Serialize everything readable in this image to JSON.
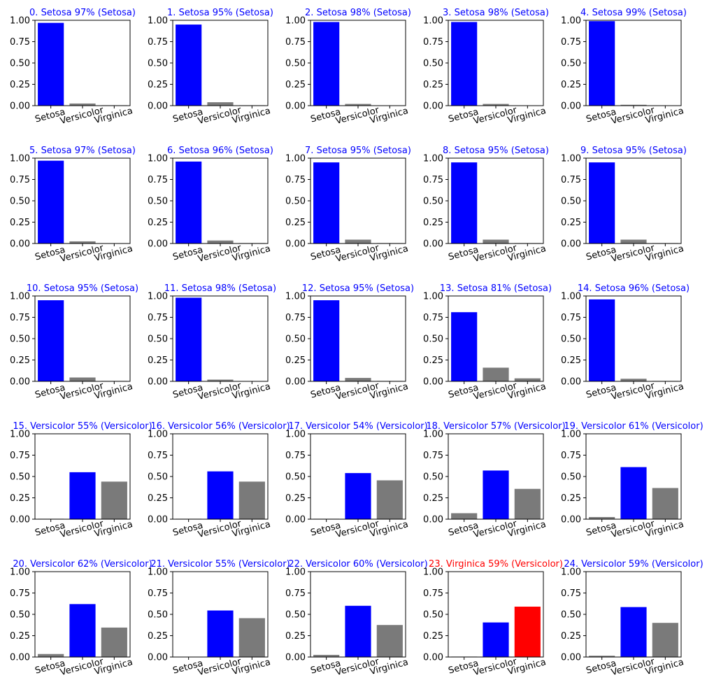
{
  "colors": {
    "predicted": "#0000ff",
    "other": "#7a7a7a",
    "wrong": "#ff0000",
    "title_correct": "#0000ff",
    "title_wrong": "#ff0000",
    "axis": "#000000",
    "background": "#ffffff"
  },
  "chart_data": [
    {
      "type": "bar",
      "title": "0. Setosa 97% (Setosa)",
      "categories": [
        "Setosa",
        "Versicolor",
        "Virginica"
      ],
      "values": [
        0.97,
        0.025,
        0.005
      ],
      "ylim": [
        0,
        1
      ],
      "yticks": [
        "0.00",
        "0.25",
        "0.50",
        "0.75",
        "1.00"
      ],
      "highlight": "blue"
    },
    {
      "type": "bar",
      "title": "1. Setosa 95% (Setosa)",
      "categories": [
        "Setosa",
        "Versicolor",
        "Virginica"
      ],
      "values": [
        0.95,
        0.04,
        0.005
      ],
      "ylim": [
        0,
        1
      ],
      "yticks": [
        "0.00",
        "0.25",
        "0.50",
        "0.75",
        "1.00"
      ],
      "highlight": "blue"
    },
    {
      "type": "bar",
      "title": "2. Setosa 98% (Setosa)",
      "categories": [
        "Setosa",
        "Versicolor",
        "Virginica"
      ],
      "values": [
        0.98,
        0.02,
        0.002
      ],
      "ylim": [
        0,
        1
      ],
      "yticks": [
        "0.00",
        "0.25",
        "0.50",
        "0.75",
        "1.00"
      ],
      "highlight": "blue"
    },
    {
      "type": "bar",
      "title": "3. Setosa 98% (Setosa)",
      "categories": [
        "Setosa",
        "Versicolor",
        "Virginica"
      ],
      "values": [
        0.98,
        0.02,
        0.002
      ],
      "ylim": [
        0,
        1
      ],
      "yticks": [
        "0.00",
        "0.25",
        "0.50",
        "0.75",
        "1.00"
      ],
      "highlight": "blue"
    },
    {
      "type": "bar",
      "title": "4. Setosa 99% (Setosa)",
      "categories": [
        "Setosa",
        "Versicolor",
        "Virginica"
      ],
      "values": [
        0.99,
        0.01,
        0.001
      ],
      "ylim": [
        0,
        1
      ],
      "yticks": [
        "0.00",
        "0.25",
        "0.50",
        "0.75",
        "1.00"
      ],
      "highlight": "blue"
    },
    {
      "type": "bar",
      "title": "5. Setosa 97% (Setosa)",
      "categories": [
        "Setosa",
        "Versicolor",
        "Virginica"
      ],
      "values": [
        0.97,
        0.025,
        0.002
      ],
      "ylim": [
        0,
        1
      ],
      "yticks": [
        "0.00",
        "0.25",
        "0.50",
        "0.75",
        "1.00"
      ],
      "highlight": "blue"
    },
    {
      "type": "bar",
      "title": "6. Setosa 96% (Setosa)",
      "categories": [
        "Setosa",
        "Versicolor",
        "Virginica"
      ],
      "values": [
        0.96,
        0.035,
        0.005
      ],
      "ylim": [
        0,
        1
      ],
      "yticks": [
        "0.00",
        "0.25",
        "0.50",
        "0.75",
        "1.00"
      ],
      "highlight": "blue"
    },
    {
      "type": "bar",
      "title": "7. Setosa 95% (Setosa)",
      "categories": [
        "Setosa",
        "Versicolor",
        "Virginica"
      ],
      "values": [
        0.95,
        0.045,
        0.005
      ],
      "ylim": [
        0,
        1
      ],
      "yticks": [
        "0.00",
        "0.25",
        "0.50",
        "0.75",
        "1.00"
      ],
      "highlight": "blue"
    },
    {
      "type": "bar",
      "title": "8. Setosa 95% (Setosa)",
      "categories": [
        "Setosa",
        "Versicolor",
        "Virginica"
      ],
      "values": [
        0.95,
        0.045,
        0.005
      ],
      "ylim": [
        0,
        1
      ],
      "yticks": [
        "0.00",
        "0.25",
        "0.50",
        "0.75",
        "1.00"
      ],
      "highlight": "blue"
    },
    {
      "type": "bar",
      "title": "9. Setosa 95% (Setosa)",
      "categories": [
        "Setosa",
        "Versicolor",
        "Virginica"
      ],
      "values": [
        0.95,
        0.045,
        0.005
      ],
      "ylim": [
        0,
        1
      ],
      "yticks": [
        "0.00",
        "0.25",
        "0.50",
        "0.75",
        "1.00"
      ],
      "highlight": "blue"
    },
    {
      "type": "bar",
      "title": "10. Setosa 95% (Setosa)",
      "categories": [
        "Setosa",
        "Versicolor",
        "Virginica"
      ],
      "values": [
        0.95,
        0.045,
        0.005
      ],
      "ylim": [
        0,
        1
      ],
      "yticks": [
        "0.00",
        "0.25",
        "0.50",
        "0.75",
        "1.00"
      ],
      "highlight": "blue"
    },
    {
      "type": "bar",
      "title": "11. Setosa 98% (Setosa)",
      "categories": [
        "Setosa",
        "Versicolor",
        "Virginica"
      ],
      "values": [
        0.98,
        0.02,
        0.002
      ],
      "ylim": [
        0,
        1
      ],
      "yticks": [
        "0.00",
        "0.25",
        "0.50",
        "0.75",
        "1.00"
      ],
      "highlight": "blue"
    },
    {
      "type": "bar",
      "title": "12. Setosa 95% (Setosa)",
      "categories": [
        "Setosa",
        "Versicolor",
        "Virginica"
      ],
      "values": [
        0.95,
        0.04,
        0.005
      ],
      "ylim": [
        0,
        1
      ],
      "yticks": [
        "0.00",
        "0.25",
        "0.50",
        "0.75",
        "1.00"
      ],
      "highlight": "blue"
    },
    {
      "type": "bar",
      "title": "13. Setosa 81% (Setosa)",
      "categories": [
        "Setosa",
        "Versicolor",
        "Virginica"
      ],
      "values": [
        0.81,
        0.16,
        0.035
      ],
      "ylim": [
        0,
        1
      ],
      "yticks": [
        "0.00",
        "0.25",
        "0.50",
        "0.75",
        "1.00"
      ],
      "highlight": "blue"
    },
    {
      "type": "bar",
      "title": "14. Setosa 96% (Setosa)",
      "categories": [
        "Setosa",
        "Versicolor",
        "Virginica"
      ],
      "values": [
        0.96,
        0.03,
        0.005
      ],
      "ylim": [
        0,
        1
      ],
      "yticks": [
        "0.00",
        "0.25",
        "0.50",
        "0.75",
        "1.00"
      ],
      "highlight": "blue"
    },
    {
      "type": "bar",
      "title": "15. Versicolor 55% (Versicolor)",
      "categories": [
        "Setosa",
        "Versicolor",
        "Virginica"
      ],
      "values": [
        0.005,
        0.55,
        0.44
      ],
      "ylim": [
        0,
        1
      ],
      "yticks": [
        "0.00",
        "0.25",
        "0.50",
        "0.75",
        "1.00"
      ],
      "highlight": "blue"
    },
    {
      "type": "bar",
      "title": "16. Versicolor 56% (Versicolor)",
      "categories": [
        "Setosa",
        "Versicolor",
        "Virginica"
      ],
      "values": [
        0.005,
        0.56,
        0.44
      ],
      "ylim": [
        0,
        1
      ],
      "yticks": [
        "0.00",
        "0.25",
        "0.50",
        "0.75",
        "1.00"
      ],
      "highlight": "blue"
    },
    {
      "type": "bar",
      "title": "17. Versicolor 54% (Versicolor)",
      "categories": [
        "Setosa",
        "Versicolor",
        "Virginica"
      ],
      "values": [
        0.005,
        0.54,
        0.455
      ],
      "ylim": [
        0,
        1
      ],
      "yticks": [
        "0.00",
        "0.25",
        "0.50",
        "0.75",
        "1.00"
      ],
      "highlight": "blue"
    },
    {
      "type": "bar",
      "title": "18. Versicolor 57% (Versicolor)",
      "categories": [
        "Setosa",
        "Versicolor",
        "Virginica"
      ],
      "values": [
        0.07,
        0.57,
        0.355
      ],
      "ylim": [
        0,
        1
      ],
      "yticks": [
        "0.00",
        "0.25",
        "0.50",
        "0.75",
        "1.00"
      ],
      "highlight": "blue"
    },
    {
      "type": "bar",
      "title": "19. Versicolor 61% (Versicolor)",
      "categories": [
        "Setosa",
        "Versicolor",
        "Virginica"
      ],
      "values": [
        0.025,
        0.61,
        0.365
      ],
      "ylim": [
        0,
        1
      ],
      "yticks": [
        "0.00",
        "0.25",
        "0.50",
        "0.75",
        "1.00"
      ],
      "highlight": "blue"
    },
    {
      "type": "bar",
      "title": "20. Versicolor 62% (Versicolor)",
      "categories": [
        "Setosa",
        "Versicolor",
        "Virginica"
      ],
      "values": [
        0.035,
        0.62,
        0.345
      ],
      "ylim": [
        0,
        1
      ],
      "yticks": [
        "0.00",
        "0.25",
        "0.50",
        "0.75",
        "1.00"
      ],
      "highlight": "blue"
    },
    {
      "type": "bar",
      "title": "21. Versicolor 55% (Versicolor)",
      "categories": [
        "Setosa",
        "Versicolor",
        "Virginica"
      ],
      "values": [
        0.002,
        0.545,
        0.455
      ],
      "ylim": [
        0,
        1
      ],
      "yticks": [
        "0.00",
        "0.25",
        "0.50",
        "0.75",
        "1.00"
      ],
      "highlight": "blue"
    },
    {
      "type": "bar",
      "title": "22. Versicolor 60% (Versicolor)",
      "categories": [
        "Setosa",
        "Versicolor",
        "Virginica"
      ],
      "values": [
        0.025,
        0.6,
        0.375
      ],
      "ylim": [
        0,
        1
      ],
      "yticks": [
        "0.00",
        "0.25",
        "0.50",
        "0.75",
        "1.00"
      ],
      "highlight": "blue"
    },
    {
      "type": "bar",
      "title": "23. Virginica 59% (Versicolor)",
      "categories": [
        "Setosa",
        "Versicolor",
        "Virginica"
      ],
      "values": [
        0.005,
        0.405,
        0.59
      ],
      "ylim": [
        0,
        1
      ],
      "yticks": [
        "0.00",
        "0.25",
        "0.50",
        "0.75",
        "1.00"
      ],
      "highlight": "red"
    },
    {
      "type": "bar",
      "title": "24. Versicolor 59% (Versicolor)",
      "categories": [
        "Setosa",
        "Versicolor",
        "Virginica"
      ],
      "values": [
        0.015,
        0.585,
        0.4
      ],
      "ylim": [
        0,
        1
      ],
      "yticks": [
        "0.00",
        "0.25",
        "0.50",
        "0.75",
        "1.00"
      ],
      "highlight": "blue"
    }
  ]
}
